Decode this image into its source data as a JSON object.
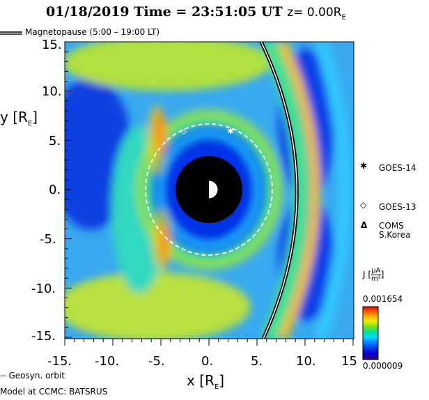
{
  "header": {
    "title": "01/18/2019 Time = 23:51:05 UT",
    "z_label": "z= 0.00R",
    "z_sub": "E"
  },
  "legend": {
    "magnetopause": "Magnetopause (5:00 – 19:00 LT)",
    "geosyn": "-- Geosyn. orbit"
  },
  "footer": {
    "model": "Model at CCMC: BATSRUS"
  },
  "satellites": [
    {
      "symbol": "✱",
      "name": "GOES-14",
      "icon": "asterisk-icon"
    },
    {
      "symbol": "◇",
      "name": "GOES-13",
      "icon": "diamond-icon"
    },
    {
      "symbol": "Δ",
      "name": "COMS",
      "name2": "S.Korea",
      "icon": "triangle-icon"
    }
  ],
  "colorbar": {
    "label": "J",
    "unit_num": "μA",
    "unit_den": "m²",
    "max": "0.001654",
    "min": "0.000009",
    "colors": [
      "#3a0070",
      "#0000d0",
      "#0060ff",
      "#00d0ff",
      "#00e0a0",
      "#60e020",
      "#e0f000",
      "#ffb000",
      "#ff5000",
      "#e00000"
    ]
  },
  "chart_data": {
    "type": "heatmap",
    "title": "01/18/2019 Time = 23:51:05 UT z= 0.00RE",
    "quantity": "J (μA/m²)",
    "xlabel": "x [RE]",
    "ylabel": "y [RE]",
    "xlim": [
      -15,
      15
    ],
    "ylim": [
      -15,
      15
    ],
    "xticks": [
      "-15.",
      "-10.",
      "-5.",
      "0.",
      "5.",
      "10.",
      "15"
    ],
    "yticks": [
      "15.",
      "10.",
      "5.",
      "0.",
      "-5.",
      "-10.",
      "-15."
    ],
    "colorscale_range": [
      9e-06,
      0.001654
    ],
    "geosync_radius_RE": 6.6,
    "earth_mask_radius_RE": 3.5,
    "satellite_positions": [
      {
        "name": "GOES-14",
        "x": 2.1,
        "y": 6.1
      },
      {
        "name": "GOES-13",
        "x": -2.6,
        "y": 6.0
      }
    ]
  }
}
